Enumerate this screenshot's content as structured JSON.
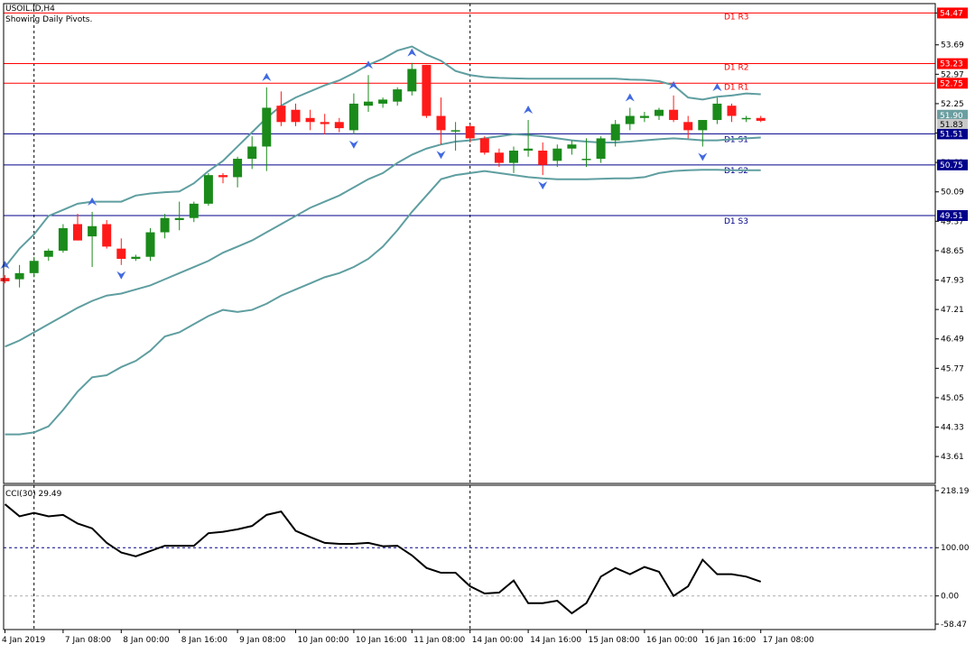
{
  "header": {
    "symbol": "USOIL.ID,H4",
    "subtitle": "Showing Daily Pivots."
  },
  "colors": {
    "bull": "#1a8a1a",
    "bear": "#ff1a1a",
    "bollinger": "#5f9ea0",
    "pivot_resistance": "#ff0000",
    "pivot_support": "#00008b",
    "fractal": "#4169e1",
    "cci_line": "#000000",
    "cci_level_100": "#00008b",
    "cci_level_0": "#aaaaaa",
    "frame": "#000000"
  },
  "chart_data": [
    {
      "type": "candlestick",
      "title": "USOIL.ID,H4",
      "subtitle": "Showing Daily Pivots.",
      "ylim": [
        42.95,
        54.7
      ],
      "price_ticks": [
        "54.47",
        "53.69",
        "52.97",
        "52.25",
        "51.53",
        "50.81",
        "50.09",
        "49.37",
        "48.65",
        "47.93",
        "47.21",
        "46.49",
        "45.77",
        "45.05",
        "44.33",
        "43.61"
      ],
      "x_ticks": [
        {
          "label": "4 Jan 2019",
          "bar": 0
        },
        {
          "label": "7 Jan 08:00",
          "bar": 4
        },
        {
          "label": "8 Jan 00:00",
          "bar": 8
        },
        {
          "label": "8 Jan 16:00",
          "bar": 12
        },
        {
          "label": "9 Jan 08:00",
          "bar": 16
        },
        {
          "label": "10 Jan 00:00",
          "bar": 20
        },
        {
          "label": "10 Jan 16:00",
          "bar": 24
        },
        {
          "label": "11 Jan 08:00",
          "bar": 28
        },
        {
          "label": "14 Jan 00:00",
          "bar": 32
        },
        {
          "label": "14 Jan 16:00",
          "bar": 36
        },
        {
          "label": "15 Jan 08:00",
          "bar": 40
        },
        {
          "label": "16 Jan 00:00",
          "bar": 44
        },
        {
          "label": "16 Jan 16:00",
          "bar": 48
        },
        {
          "label": "17 Jan 08:00",
          "bar": 52
        }
      ],
      "separators": [
        2,
        32
      ],
      "pivot_levels": [
        {
          "name": "D1 R3",
          "value": 54.47,
          "label": "54.47",
          "kind": "resistance"
        },
        {
          "name": "D1 R2",
          "value": 53.23,
          "label": "53.23",
          "kind": "resistance"
        },
        {
          "name": "D1 R1",
          "value": 52.75,
          "label": "52.75",
          "kind": "resistance"
        },
        {
          "name": "D1 S1",
          "value": 51.51,
          "label": "51.51",
          "kind": "support"
        },
        {
          "name": "D1 S2",
          "value": 50.75,
          "label": "50.75",
          "kind": "support"
        },
        {
          "name": "D1 S3",
          "value": 49.51,
          "label": "49.51",
          "kind": "support"
        }
      ],
      "current_price_labels": [
        {
          "value": 51.9,
          "label": "51.90"
        },
        {
          "value": 51.83,
          "label": "51.83"
        }
      ],
      "candles": [
        {
          "o": 47.98,
          "h": 48.05,
          "l": 47.85,
          "c": 47.9
        },
        {
          "o": 47.95,
          "h": 48.3,
          "l": 47.75,
          "c": 48.1
        },
        {
          "o": 48.1,
          "h": 48.5,
          "l": 48.0,
          "c": 48.4
        },
        {
          "o": 48.5,
          "h": 48.7,
          "l": 48.4,
          "c": 48.65
        },
        {
          "o": 48.65,
          "h": 49.3,
          "l": 48.6,
          "c": 49.2
        },
        {
          "o": 49.3,
          "h": 49.55,
          "l": 48.9,
          "c": 48.9
        },
        {
          "o": 49.0,
          "h": 49.6,
          "l": 48.25,
          "c": 49.25
        },
        {
          "o": 49.3,
          "h": 49.4,
          "l": 48.7,
          "c": 48.75
        },
        {
          "o": 48.7,
          "h": 48.95,
          "l": 48.3,
          "c": 48.45
        },
        {
          "o": 48.45,
          "h": 48.55,
          "l": 48.4,
          "c": 48.5
        },
        {
          "o": 48.5,
          "h": 49.2,
          "l": 48.4,
          "c": 49.1
        },
        {
          "o": 49.1,
          "h": 49.55,
          "l": 48.95,
          "c": 49.45
        },
        {
          "o": 49.4,
          "h": 49.85,
          "l": 49.15,
          "c": 49.45
        },
        {
          "o": 49.45,
          "h": 49.85,
          "l": 49.35,
          "c": 49.8
        },
        {
          "o": 49.8,
          "h": 50.55,
          "l": 49.75,
          "c": 50.5
        },
        {
          "o": 50.5,
          "h": 50.55,
          "l": 50.3,
          "c": 50.45
        },
        {
          "o": 50.45,
          "h": 50.95,
          "l": 50.2,
          "c": 50.9
        },
        {
          "o": 50.9,
          "h": 51.45,
          "l": 50.65,
          "c": 51.2
        },
        {
          "o": 51.2,
          "h": 52.65,
          "l": 50.6,
          "c": 52.15
        },
        {
          "o": 52.2,
          "h": 52.55,
          "l": 51.7,
          "c": 51.8
        },
        {
          "o": 52.1,
          "h": 52.25,
          "l": 51.7,
          "c": 51.8
        },
        {
          "o": 51.9,
          "h": 52.1,
          "l": 51.6,
          "c": 51.8
        },
        {
          "o": 51.8,
          "h": 52.0,
          "l": 51.5,
          "c": 51.75
        },
        {
          "o": 51.8,
          "h": 51.9,
          "l": 51.55,
          "c": 51.65
        },
        {
          "o": 51.6,
          "h": 52.5,
          "l": 51.5,
          "c": 52.25
        },
        {
          "o": 52.2,
          "h": 52.95,
          "l": 52.05,
          "c": 52.3
        },
        {
          "o": 52.25,
          "h": 52.4,
          "l": 52.15,
          "c": 52.35
        },
        {
          "o": 52.3,
          "h": 52.65,
          "l": 52.2,
          "c": 52.6
        },
        {
          "o": 52.55,
          "h": 53.25,
          "l": 52.45,
          "c": 53.1
        },
        {
          "o": 53.2,
          "h": 53.2,
          "l": 51.9,
          "c": 51.95
        },
        {
          "o": 51.95,
          "h": 52.4,
          "l": 51.25,
          "c": 51.6
        },
        {
          "o": 51.6,
          "h": 51.8,
          "l": 51.1,
          "c": 51.6
        },
        {
          "o": 51.7,
          "h": 51.75,
          "l": 51.3,
          "c": 51.4
        },
        {
          "o": 51.4,
          "h": 51.45,
          "l": 51.0,
          "c": 51.05
        },
        {
          "o": 51.05,
          "h": 51.15,
          "l": 50.7,
          "c": 50.8
        },
        {
          "o": 50.8,
          "h": 51.2,
          "l": 50.55,
          "c": 51.1
        },
        {
          "o": 51.1,
          "h": 51.85,
          "l": 50.95,
          "c": 51.15
        },
        {
          "o": 51.1,
          "h": 51.3,
          "l": 50.5,
          "c": 50.75
        },
        {
          "o": 50.85,
          "h": 51.25,
          "l": 50.7,
          "c": 51.15
        },
        {
          "o": 51.15,
          "h": 51.35,
          "l": 51.0,
          "c": 51.25
        },
        {
          "o": 50.9,
          "h": 51.4,
          "l": 50.7,
          "c": 50.9
        },
        {
          "o": 50.9,
          "h": 51.45,
          "l": 50.8,
          "c": 51.4
        },
        {
          "o": 51.35,
          "h": 51.85,
          "l": 51.2,
          "c": 51.75
        },
        {
          "o": 51.75,
          "h": 52.15,
          "l": 51.6,
          "c": 51.95
        },
        {
          "o": 51.9,
          "h": 52.05,
          "l": 51.8,
          "c": 51.95
        },
        {
          "o": 51.95,
          "h": 52.15,
          "l": 51.85,
          "c": 52.1
        },
        {
          "o": 52.1,
          "h": 52.45,
          "l": 51.8,
          "c": 51.85
        },
        {
          "o": 51.8,
          "h": 51.95,
          "l": 51.4,
          "c": 51.6
        },
        {
          "o": 51.6,
          "h": 51.85,
          "l": 51.2,
          "c": 51.85
        },
        {
          "o": 51.85,
          "h": 52.4,
          "l": 51.75,
          "c": 52.25
        },
        {
          "o": 52.2,
          "h": 52.25,
          "l": 51.8,
          "c": 51.95
        },
        {
          "o": 51.9,
          "h": 51.95,
          "l": 51.8,
          "c": 51.9
        },
        {
          "o": 51.9,
          "h": 51.95,
          "l": 51.8,
          "c": 51.83
        }
      ],
      "bollinger": {
        "upper": [
          48.25,
          48.7,
          49.05,
          49.5,
          49.65,
          49.8,
          49.85,
          49.85,
          49.85,
          50.0,
          50.05,
          50.08,
          50.1,
          50.3,
          50.6,
          50.85,
          51.2,
          51.55,
          51.9,
          52.2,
          52.4,
          52.55,
          52.7,
          52.82,
          53.0,
          53.2,
          53.35,
          53.55,
          53.65,
          53.45,
          53.3,
          53.05,
          52.95,
          52.9,
          52.88,
          52.87,
          52.86,
          52.86,
          52.86,
          52.86,
          52.86,
          52.86,
          52.86,
          52.84,
          52.83,
          52.8,
          52.7,
          52.4,
          52.35,
          52.42,
          52.45,
          52.5,
          52.48
        ],
        "middle": [
          46.3,
          46.45,
          46.65,
          46.85,
          47.05,
          47.25,
          47.42,
          47.55,
          47.6,
          47.7,
          47.8,
          47.95,
          48.1,
          48.25,
          48.4,
          48.6,
          48.75,
          48.9,
          49.1,
          49.3,
          49.5,
          49.7,
          49.85,
          50.0,
          50.2,
          50.4,
          50.55,
          50.8,
          51.0,
          51.15,
          51.25,
          51.32,
          51.35,
          51.4,
          51.45,
          51.5,
          51.48,
          51.45,
          51.4,
          51.35,
          51.32,
          51.3,
          51.3,
          51.32,
          51.35,
          51.38,
          51.4,
          51.38,
          51.35,
          51.35,
          51.38,
          51.4,
          51.42
        ],
        "lower": [
          44.15,
          44.15,
          44.2,
          44.35,
          44.75,
          45.2,
          45.55,
          45.6,
          45.8,
          45.95,
          46.2,
          46.55,
          46.65,
          46.85,
          47.05,
          47.2,
          47.15,
          47.2,
          47.35,
          47.55,
          47.7,
          47.85,
          48.0,
          48.1,
          48.25,
          48.45,
          48.75,
          49.15,
          49.6,
          50.0,
          50.4,
          50.5,
          50.55,
          50.6,
          50.55,
          50.5,
          50.45,
          50.42,
          50.4,
          50.4,
          50.4,
          50.41,
          50.42,
          50.42,
          50.45,
          50.55,
          50.6,
          50.62,
          50.63,
          50.63,
          50.62,
          50.62,
          50.62
        ]
      },
      "fractals": [
        {
          "bar": 0,
          "dir": "up"
        },
        {
          "bar": 6,
          "dir": "up"
        },
        {
          "bar": 8,
          "dir": "down"
        },
        {
          "bar": 18,
          "dir": "up"
        },
        {
          "bar": 24,
          "dir": "down"
        },
        {
          "bar": 25,
          "dir": "up"
        },
        {
          "bar": 28,
          "dir": "up"
        },
        {
          "bar": 30,
          "dir": "down"
        },
        {
          "bar": 36,
          "dir": "up"
        },
        {
          "bar": 37,
          "dir": "down"
        },
        {
          "bar": 43,
          "dir": "up"
        },
        {
          "bar": 46,
          "dir": "up"
        },
        {
          "bar": 48,
          "dir": "down"
        },
        {
          "bar": 49,
          "dir": "up"
        }
      ]
    },
    {
      "type": "line",
      "title": "CCI(30) 29.49",
      "ylim": [
        -58.47,
        218.19
      ],
      "y_ticks": [
        "218.19",
        "100.00",
        "0.00",
        "-58.47"
      ],
      "levels": [
        100,
        0
      ],
      "series": [
        {
          "name": "CCI(30)",
          "values": [
            190,
            165,
            172,
            165,
            168,
            150,
            140,
            110,
            90,
            82,
            93,
            104,
            104,
            104,
            130,
            133,
            138,
            145,
            168,
            175,
            135,
            122,
            110,
            108,
            108,
            110,
            103,
            104,
            84,
            58,
            48,
            48,
            20,
            5,
            7,
            32,
            -15,
            -15,
            -10,
            -36,
            -15,
            40,
            58,
            45,
            60,
            50,
            0,
            20,
            75,
            45,
            45,
            40,
            29.49
          ]
        }
      ]
    }
  ]
}
